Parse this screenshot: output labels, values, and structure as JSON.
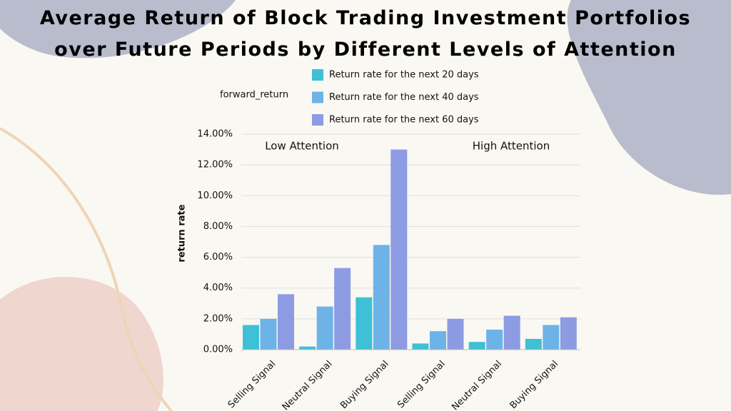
{
  "chart_data": {
    "type": "bar",
    "title": "Average Return of Block Trading Investment Portfolios over Future Periods by Different Levels of Attention",
    "legend_title": "forward_return",
    "y_label": "return rate",
    "annotations": [
      "Low Attention",
      "High Attention"
    ],
    "categories": [
      "Selling Signal",
      "Neutral Signal",
      "Buying Signal",
      "Selling Signal",
      "Neutral Signal",
      "Buying Signal"
    ],
    "series": [
      {
        "name": "Return rate for the next 20 days",
        "color": "#3ec0d6",
        "values": [
          1.6,
          0.2,
          3.4,
          0.4,
          0.5,
          0.7
        ]
      },
      {
        "name": "Return rate for the next 40 days",
        "color": "#6db3e8",
        "values": [
          2.0,
          2.8,
          6.8,
          1.2,
          1.3,
          1.6
        ]
      },
      {
        "name": "Return rate for the next 60 days",
        "color": "#8c9be2",
        "values": [
          3.6,
          5.3,
          13.0,
          2.0,
          2.2,
          2.1
        ]
      }
    ],
    "ylim": [
      0,
      14
    ],
    "yticks": [
      {
        "value": 0,
        "label": "0.00%"
      },
      {
        "value": 2,
        "label": "2.00%"
      },
      {
        "value": 4,
        "label": "4.00%"
      },
      {
        "value": 6,
        "label": "6.00%"
      },
      {
        "value": 8,
        "label": "8.00%"
      },
      {
        "value": 10,
        "label": "10.00%"
      },
      {
        "value": 12,
        "label": "12.00%"
      },
      {
        "value": 14,
        "label": "14.00%"
      }
    ],
    "grid": true
  }
}
